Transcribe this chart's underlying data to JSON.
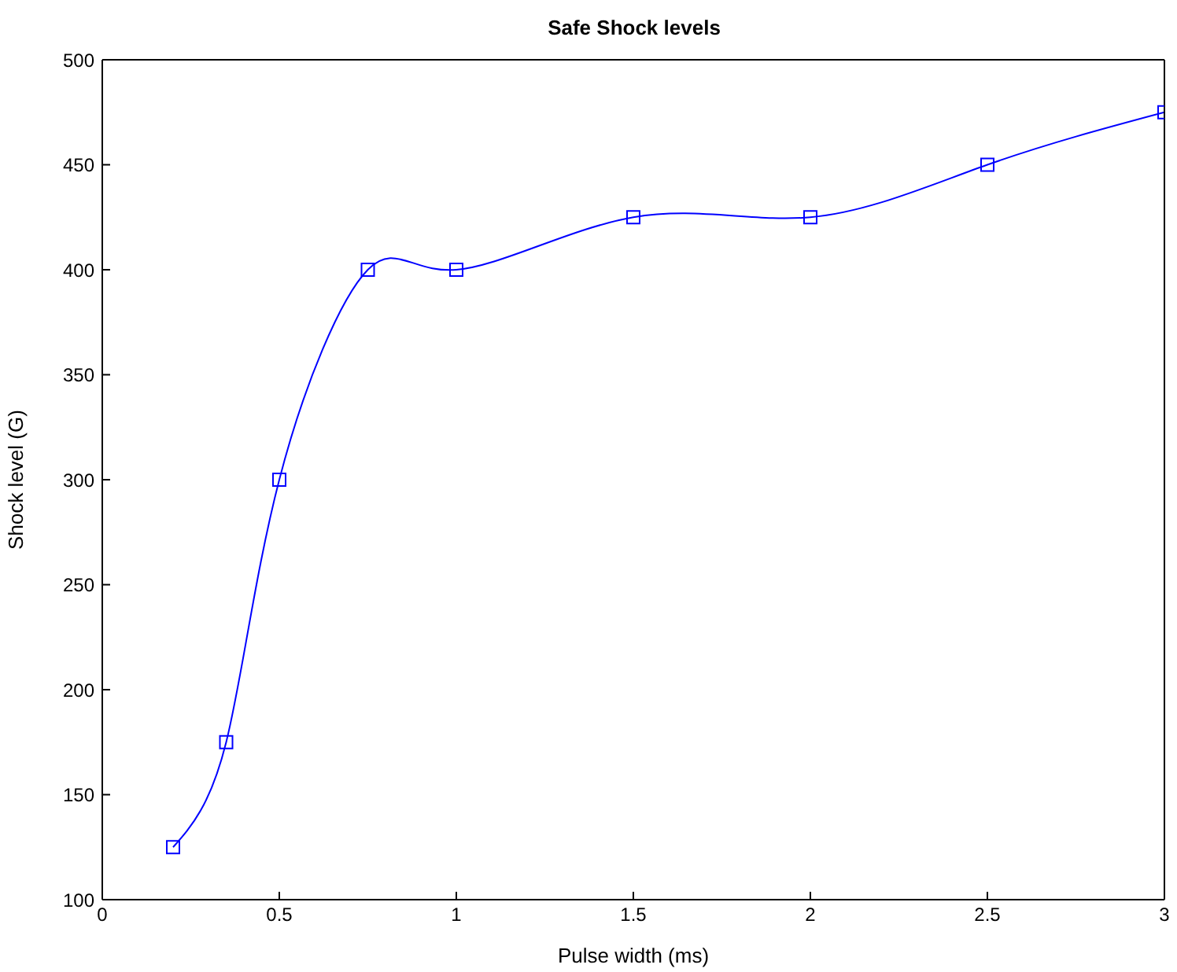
{
  "chart_data": {
    "type": "line",
    "title": "Safe Shock levels",
    "xlabel": "Pulse width (ms)",
    "ylabel": "Shock level (G)",
    "x": [
      0.2,
      0.35,
      0.5,
      0.75,
      1,
      1.5,
      2,
      2.5,
      3
    ],
    "series": [
      {
        "color": "#0000ff",
        "values": [
          125,
          175,
          300,
          400,
          400,
          425,
          425,
          450,
          475
        ]
      }
    ],
    "xlim": [
      0,
      3
    ],
    "xticks": [
      0,
      0.5,
      1,
      1.5,
      2,
      2.5,
      3
    ],
    "ylim": [
      100,
      500
    ],
    "yticks": [
      100,
      150,
      200,
      250,
      300,
      350,
      400,
      450,
      500
    ],
    "marker": "square",
    "line_style": "solid"
  }
}
